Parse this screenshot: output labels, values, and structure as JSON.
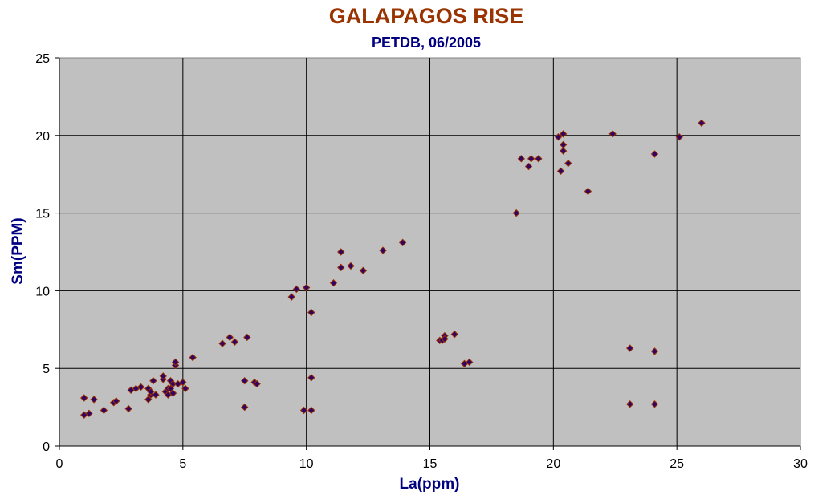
{
  "chart_data": {
    "type": "scatter",
    "title": "GALAPAGOS RISE",
    "subtitle": "PETDB, 06/2005",
    "xlabel": "La(ppm)",
    "ylabel": "Sm(PPM)",
    "xlim": [
      0,
      30
    ],
    "ylim": [
      0,
      25
    ],
    "xticks": [
      0,
      5,
      10,
      15,
      20,
      25,
      30
    ],
    "yticks": [
      0,
      5,
      10,
      15,
      20,
      25
    ],
    "grid": true,
    "legend": "none",
    "colors": {
      "plot_bg": "#c0c0c0",
      "marker": "#330066",
      "marker_edge": "#993300"
    },
    "series": [
      {
        "x": [
          1.0,
          1.0,
          1.2,
          1.4,
          1.8,
          2.2,
          2.3,
          2.8,
          2.9,
          3.1,
          3.3,
          3.6,
          3.6,
          3.7,
          3.7,
          3.8,
          3.9,
          4.2,
          4.2,
          4.3,
          4.4,
          4.4,
          4.5,
          4.5,
          4.6,
          4.6,
          4.7,
          4.7,
          4.8,
          5.0,
          5.1,
          5.4,
          6.6,
          6.9,
          7.1,
          7.5,
          7.5,
          7.6,
          7.9,
          8.0,
          9.4,
          9.6,
          9.9,
          10.0,
          10.2,
          10.2,
          10.2,
          11.1,
          11.4,
          11.4,
          11.8,
          12.3,
          13.1,
          13.9,
          15.4,
          15.5,
          15.6,
          15.6,
          16.0,
          16.4,
          16.6,
          18.5,
          18.7,
          19.0,
          19.1,
          19.4,
          20.2,
          20.3,
          20.4,
          20.4,
          20.4,
          20.6,
          21.4,
          22.4,
          23.1,
          23.1,
          24.1,
          24.1,
          24.1,
          25.1,
          26.0
        ],
        "y": [
          2.0,
          3.1,
          2.1,
          3.0,
          2.3,
          2.8,
          2.9,
          2.4,
          3.6,
          3.7,
          3.8,
          3.0,
          3.7,
          3.3,
          3.5,
          4.2,
          3.3,
          4.3,
          4.5,
          3.5,
          3.3,
          3.7,
          3.7,
          4.2,
          3.4,
          4.0,
          5.2,
          5.4,
          4.0,
          4.1,
          3.7,
          5.7,
          6.6,
          7.0,
          6.7,
          2.5,
          4.2,
          7.0,
          4.1,
          4.0,
          9.6,
          10.1,
          2.3,
          10.2,
          2.3,
          4.4,
          8.6,
          10.5,
          11.5,
          12.5,
          11.6,
          11.3,
          12.6,
          13.1,
          6.8,
          6.8,
          7.1,
          6.9,
          7.2,
          5.3,
          5.4,
          15.0,
          18.5,
          18.0,
          18.5,
          18.5,
          19.9,
          17.7,
          19.0,
          19.4,
          20.1,
          18.2,
          16.4,
          20.1,
          6.3,
          2.7,
          18.8,
          6.1,
          2.7,
          19.9,
          20.8
        ]
      }
    ]
  }
}
